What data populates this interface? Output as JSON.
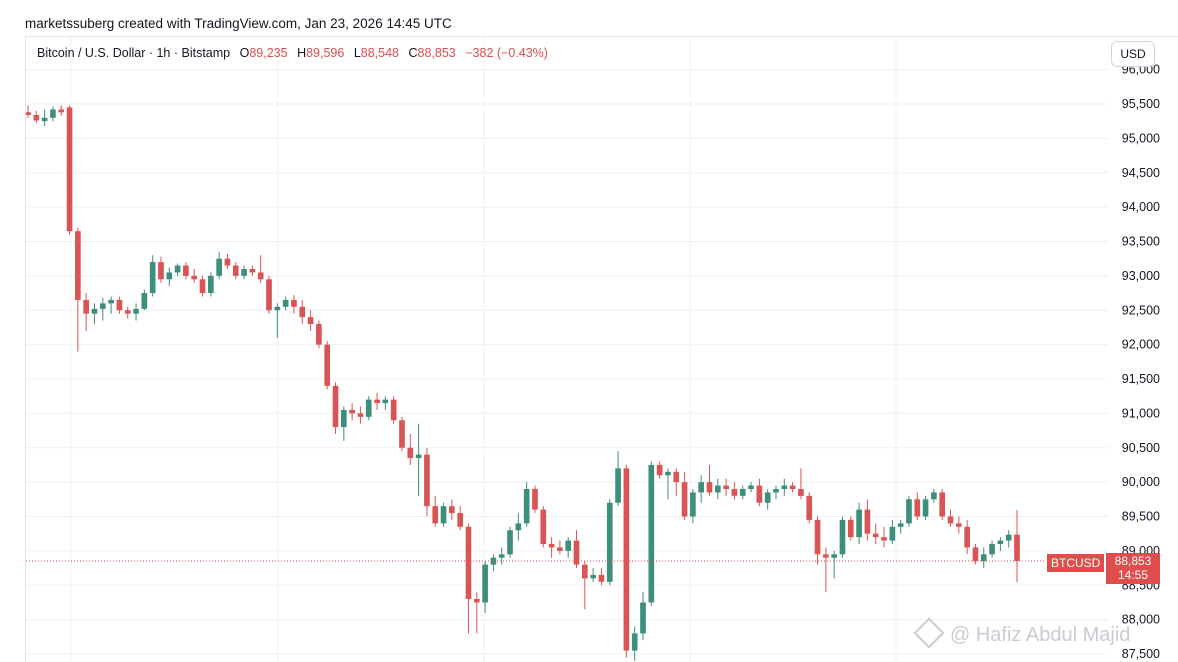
{
  "header": {
    "credit": "marketssuberg created with TradingView.com, Jan 23, 2026 14:45 UTC"
  },
  "legend": {
    "symbol": "Bitcoin / U.S. Dollar · 1h · Bitstamp",
    "open_label": "O",
    "open": "89,235",
    "high_label": "H",
    "high": "89,596",
    "low_label": "L",
    "low": "88,548",
    "close_label": "C",
    "close": "88,853",
    "change": "−382 (−0.43%)"
  },
  "currency_button": "USD",
  "price_tag": {
    "ticker": "BTCUSD",
    "last": "88,853",
    "countdown": "14:55"
  },
  "watermark": "@ Hafiz Abdul Majid",
  "colors": {
    "up": "#3d8e7a",
    "down": "#d95454",
    "grid": "#eef0f3",
    "last_line": "#e04d4d"
  },
  "chart_data": {
    "type": "candlestick",
    "interval": "1h",
    "exchange": "Bitstamp",
    "y_axis_labels": [
      "87,500",
      "88,000",
      "88,500",
      "89,000",
      "89,500",
      "90,000",
      "90,500",
      "91,000",
      "91,500",
      "92,000",
      "92,500",
      "93,000",
      "93,500",
      "94,000",
      "94,500",
      "95,000",
      "95,500",
      "96,000"
    ],
    "ylim": [
      87350,
      96100
    ],
    "grid": true,
    "last_price": 88853,
    "candles": [
      {
        "o": 95380,
        "h": 95480,
        "l": 95300,
        "c": 95340
      },
      {
        "o": 95340,
        "h": 95400,
        "l": 95220,
        "c": 95260
      },
      {
        "o": 95250,
        "h": 95420,
        "l": 95180,
        "c": 95300
      },
      {
        "o": 95300,
        "h": 95460,
        "l": 95250,
        "c": 95420
      },
      {
        "o": 95420,
        "h": 95480,
        "l": 95330,
        "c": 95380
      },
      {
        "o": 95450,
        "h": 95480,
        "l": 93600,
        "c": 93650
      },
      {
        "o": 93650,
        "h": 93700,
        "l": 91900,
        "c": 92650
      },
      {
        "o": 92650,
        "h": 92750,
        "l": 92200,
        "c": 92450
      },
      {
        "o": 92450,
        "h": 92600,
        "l": 92300,
        "c": 92520
      },
      {
        "o": 92520,
        "h": 92680,
        "l": 92350,
        "c": 92600
      },
      {
        "o": 92600,
        "h": 92700,
        "l": 92450,
        "c": 92650
      },
      {
        "o": 92650,
        "h": 92700,
        "l": 92450,
        "c": 92500
      },
      {
        "o": 92500,
        "h": 92550,
        "l": 92380,
        "c": 92450
      },
      {
        "o": 92450,
        "h": 92600,
        "l": 92350,
        "c": 92520
      },
      {
        "o": 92520,
        "h": 92800,
        "l": 92500,
        "c": 92750
      },
      {
        "o": 92750,
        "h": 93300,
        "l": 92700,
        "c": 93200
      },
      {
        "o": 93200,
        "h": 93280,
        "l": 92900,
        "c": 92950
      },
      {
        "o": 92950,
        "h": 93120,
        "l": 92850,
        "c": 93050
      },
      {
        "o": 93050,
        "h": 93180,
        "l": 93000,
        "c": 93150
      },
      {
        "o": 93150,
        "h": 93200,
        "l": 92950,
        "c": 93000
      },
      {
        "o": 93000,
        "h": 93100,
        "l": 92900,
        "c": 92950
      },
      {
        "o": 92950,
        "h": 93000,
        "l": 92700,
        "c": 92750
      },
      {
        "o": 92750,
        "h": 93050,
        "l": 92700,
        "c": 93000
      },
      {
        "o": 93000,
        "h": 93350,
        "l": 92950,
        "c": 93250
      },
      {
        "o": 93250,
        "h": 93320,
        "l": 93100,
        "c": 93150
      },
      {
        "o": 93150,
        "h": 93200,
        "l": 92950,
        "c": 93000
      },
      {
        "o": 93000,
        "h": 93150,
        "l": 92950,
        "c": 93100
      },
      {
        "o": 93100,
        "h": 93150,
        "l": 93000,
        "c": 93050
      },
      {
        "o": 93050,
        "h": 93300,
        "l": 92900,
        "c": 92950
      },
      {
        "o": 92950,
        "h": 93000,
        "l": 92450,
        "c": 92500
      },
      {
        "o": 92500,
        "h": 92600,
        "l": 92100,
        "c": 92550
      },
      {
        "o": 92550,
        "h": 92700,
        "l": 92500,
        "c": 92650
      },
      {
        "o": 92650,
        "h": 92720,
        "l": 92450,
        "c": 92550
      },
      {
        "o": 92550,
        "h": 92650,
        "l": 92300,
        "c": 92400
      },
      {
        "o": 92400,
        "h": 92500,
        "l": 92200,
        "c": 92300
      },
      {
        "o": 92300,
        "h": 92350,
        "l": 91950,
        "c": 92000
      },
      {
        "o": 92000,
        "h": 92050,
        "l": 91350,
        "c": 91400
      },
      {
        "o": 91400,
        "h": 91450,
        "l": 90700,
        "c": 90800
      },
      {
        "o": 90800,
        "h": 91100,
        "l": 90600,
        "c": 91050
      },
      {
        "o": 91050,
        "h": 91150,
        "l": 90900,
        "c": 91000
      },
      {
        "o": 91000,
        "h": 91100,
        "l": 90850,
        "c": 90950
      },
      {
        "o": 90950,
        "h": 91250,
        "l": 90900,
        "c": 91200
      },
      {
        "o": 91200,
        "h": 91300,
        "l": 91050,
        "c": 91150
      },
      {
        "o": 91150,
        "h": 91250,
        "l": 91050,
        "c": 91200
      },
      {
        "o": 91200,
        "h": 91250,
        "l": 90850,
        "c": 90900
      },
      {
        "o": 90900,
        "h": 90950,
        "l": 90450,
        "c": 90500
      },
      {
        "o": 90500,
        "h": 90700,
        "l": 90250,
        "c": 90350
      },
      {
        "o": 90350,
        "h": 90850,
        "l": 89800,
        "c": 90400
      },
      {
        "o": 90400,
        "h": 90500,
        "l": 89500,
        "c": 89650
      },
      {
        "o": 89650,
        "h": 89800,
        "l": 89350,
        "c": 89400
      },
      {
        "o": 89400,
        "h": 89700,
        "l": 89350,
        "c": 89650
      },
      {
        "o": 89650,
        "h": 89750,
        "l": 89450,
        "c": 89550
      },
      {
        "o": 89550,
        "h": 89650,
        "l": 89300,
        "c": 89350
      },
      {
        "o": 89350,
        "h": 89400,
        "l": 87800,
        "c": 88300
      },
      {
        "o": 88300,
        "h": 88400,
        "l": 87800,
        "c": 88250
      },
      {
        "o": 88250,
        "h": 88850,
        "l": 88100,
        "c": 88800
      },
      {
        "o": 88800,
        "h": 88950,
        "l": 88700,
        "c": 88900
      },
      {
        "o": 88900,
        "h": 89050,
        "l": 88800,
        "c": 88950
      },
      {
        "o": 88950,
        "h": 89350,
        "l": 88900,
        "c": 89300
      },
      {
        "o": 89300,
        "h": 89550,
        "l": 89150,
        "c": 89400
      },
      {
        "o": 89400,
        "h": 90000,
        "l": 89350,
        "c": 89900
      },
      {
        "o": 89900,
        "h": 89950,
        "l": 89550,
        "c": 89600
      },
      {
        "o": 89600,
        "h": 89650,
        "l": 89050,
        "c": 89100
      },
      {
        "o": 89100,
        "h": 89200,
        "l": 88900,
        "c": 89050
      },
      {
        "o": 89050,
        "h": 89150,
        "l": 88950,
        "c": 89000
      },
      {
        "o": 89000,
        "h": 89200,
        "l": 88900,
        "c": 89150
      },
      {
        "o": 89150,
        "h": 89300,
        "l": 88750,
        "c": 88800
      },
      {
        "o": 88800,
        "h": 88850,
        "l": 88150,
        "c": 88600
      },
      {
        "o": 88600,
        "h": 88750,
        "l": 88550,
        "c": 88650
      },
      {
        "o": 88650,
        "h": 88750,
        "l": 88500,
        "c": 88550
      },
      {
        "o": 88550,
        "h": 89750,
        "l": 88500,
        "c": 89700
      },
      {
        "o": 89700,
        "h": 90450,
        "l": 89650,
        "c": 90200
      },
      {
        "o": 90200,
        "h": 90250,
        "l": 87450,
        "c": 87550
      },
      {
        "o": 87550,
        "h": 87900,
        "l": 87400,
        "c": 87800
      },
      {
        "o": 87800,
        "h": 88400,
        "l": 87700,
        "c": 88250
      },
      {
        "o": 88250,
        "h": 90300,
        "l": 88200,
        "c": 90250
      },
      {
        "o": 90250,
        "h": 90300,
        "l": 90050,
        "c": 90100
      },
      {
        "o": 90100,
        "h": 90200,
        "l": 89750,
        "c": 90150
      },
      {
        "o": 90150,
        "h": 90200,
        "l": 89800,
        "c": 90000
      },
      {
        "o": 90000,
        "h": 90150,
        "l": 89450,
        "c": 89500
      },
      {
        "o": 89500,
        "h": 89900,
        "l": 89400,
        "c": 89850
      },
      {
        "o": 89850,
        "h": 90100,
        "l": 89700,
        "c": 90000
      },
      {
        "o": 90000,
        "h": 90250,
        "l": 89800,
        "c": 89850
      },
      {
        "o": 89850,
        "h": 90050,
        "l": 89750,
        "c": 89950
      },
      {
        "o": 89950,
        "h": 90050,
        "l": 89800,
        "c": 89900
      },
      {
        "o": 89900,
        "h": 90000,
        "l": 89750,
        "c": 89800
      },
      {
        "o": 89800,
        "h": 89950,
        "l": 89750,
        "c": 89900
      },
      {
        "o": 89900,
        "h": 90000,
        "l": 89850,
        "c": 89950
      },
      {
        "o": 89950,
        "h": 90050,
        "l": 89650,
        "c": 89700
      },
      {
        "o": 89700,
        "h": 89900,
        "l": 89600,
        "c": 89850
      },
      {
        "o": 89850,
        "h": 89950,
        "l": 89750,
        "c": 89900
      },
      {
        "o": 89900,
        "h": 90050,
        "l": 89800,
        "c": 89950
      },
      {
        "o": 89950,
        "h": 90000,
        "l": 89850,
        "c": 89900
      },
      {
        "o": 89900,
        "h": 90200,
        "l": 89750,
        "c": 89800
      },
      {
        "o": 89800,
        "h": 89850,
        "l": 89400,
        "c": 89450
      },
      {
        "o": 89450,
        "h": 89500,
        "l": 88800,
        "c": 88950
      },
      {
        "o": 88950,
        "h": 89050,
        "l": 88400,
        "c": 88900
      },
      {
        "o": 88900,
        "h": 89000,
        "l": 88600,
        "c": 88950
      },
      {
        "o": 88950,
        "h": 89500,
        "l": 88900,
        "c": 89450
      },
      {
        "o": 89450,
        "h": 89500,
        "l": 89150,
        "c": 89200
      },
      {
        "o": 89200,
        "h": 89700,
        "l": 89100,
        "c": 89600
      },
      {
        "o": 89600,
        "h": 89750,
        "l": 89150,
        "c": 89250
      },
      {
        "o": 89250,
        "h": 89400,
        "l": 89100,
        "c": 89200
      },
      {
        "o": 89200,
        "h": 89350,
        "l": 89050,
        "c": 89150
      },
      {
        "o": 89150,
        "h": 89450,
        "l": 89100,
        "c": 89350
      },
      {
        "o": 89350,
        "h": 89450,
        "l": 89250,
        "c": 89400
      },
      {
        "o": 89400,
        "h": 89800,
        "l": 89350,
        "c": 89750
      },
      {
        "o": 89750,
        "h": 89850,
        "l": 89450,
        "c": 89500
      },
      {
        "o": 89500,
        "h": 89800,
        "l": 89450,
        "c": 89750
      },
      {
        "o": 89750,
        "h": 89900,
        "l": 89700,
        "c": 89850
      },
      {
        "o": 89850,
        "h": 89900,
        "l": 89450,
        "c": 89500
      },
      {
        "o": 89500,
        "h": 89600,
        "l": 89350,
        "c": 89400
      },
      {
        "o": 89400,
        "h": 89500,
        "l": 89250,
        "c": 89350
      },
      {
        "o": 89350,
        "h": 89450,
        "l": 88950,
        "c": 89050
      },
      {
        "o": 89050,
        "h": 89100,
        "l": 88800,
        "c": 88850
      },
      {
        "o": 88850,
        "h": 89050,
        "l": 88750,
        "c": 88950
      },
      {
        "o": 88950,
        "h": 89150,
        "l": 88900,
        "c": 89100
      },
      {
        "o": 89100,
        "h": 89200,
        "l": 89000,
        "c": 89150
      },
      {
        "o": 89150,
        "h": 89300,
        "l": 89050,
        "c": 89235
      },
      {
        "o": 89235,
        "h": 89596,
        "l": 88548,
        "c": 88853
      }
    ]
  }
}
